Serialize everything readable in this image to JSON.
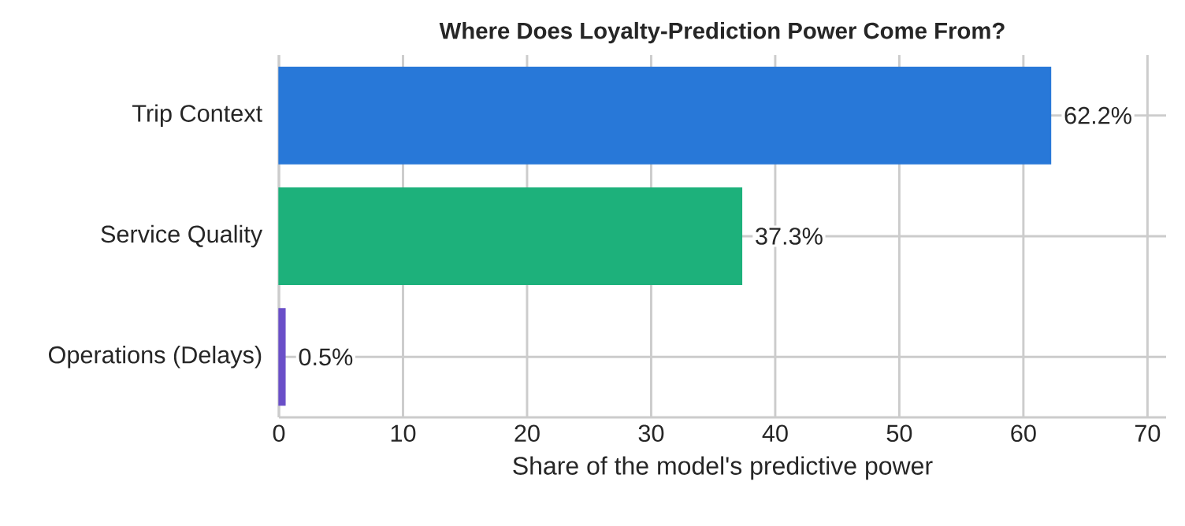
{
  "chart_data": {
    "type": "bar",
    "orientation": "horizontal",
    "title": "Where Does Loyalty-Prediction Power Come From?",
    "xlabel": "Share of the model's predictive power",
    "categories": [
      "Trip Context",
      "Service Quality",
      "Operations (Delays)"
    ],
    "values": [
      62.2,
      37.3,
      0.5
    ],
    "colors": [
      "#2878d8",
      "#1db17b",
      "#6a4fc8"
    ],
    "value_labels": [
      "62.2%",
      "37.3%",
      "0.5%"
    ],
    "xlim": [
      0,
      71.5
    ],
    "xticks": [
      0,
      10,
      20,
      30,
      40,
      50,
      60,
      70
    ],
    "grid": true
  }
}
